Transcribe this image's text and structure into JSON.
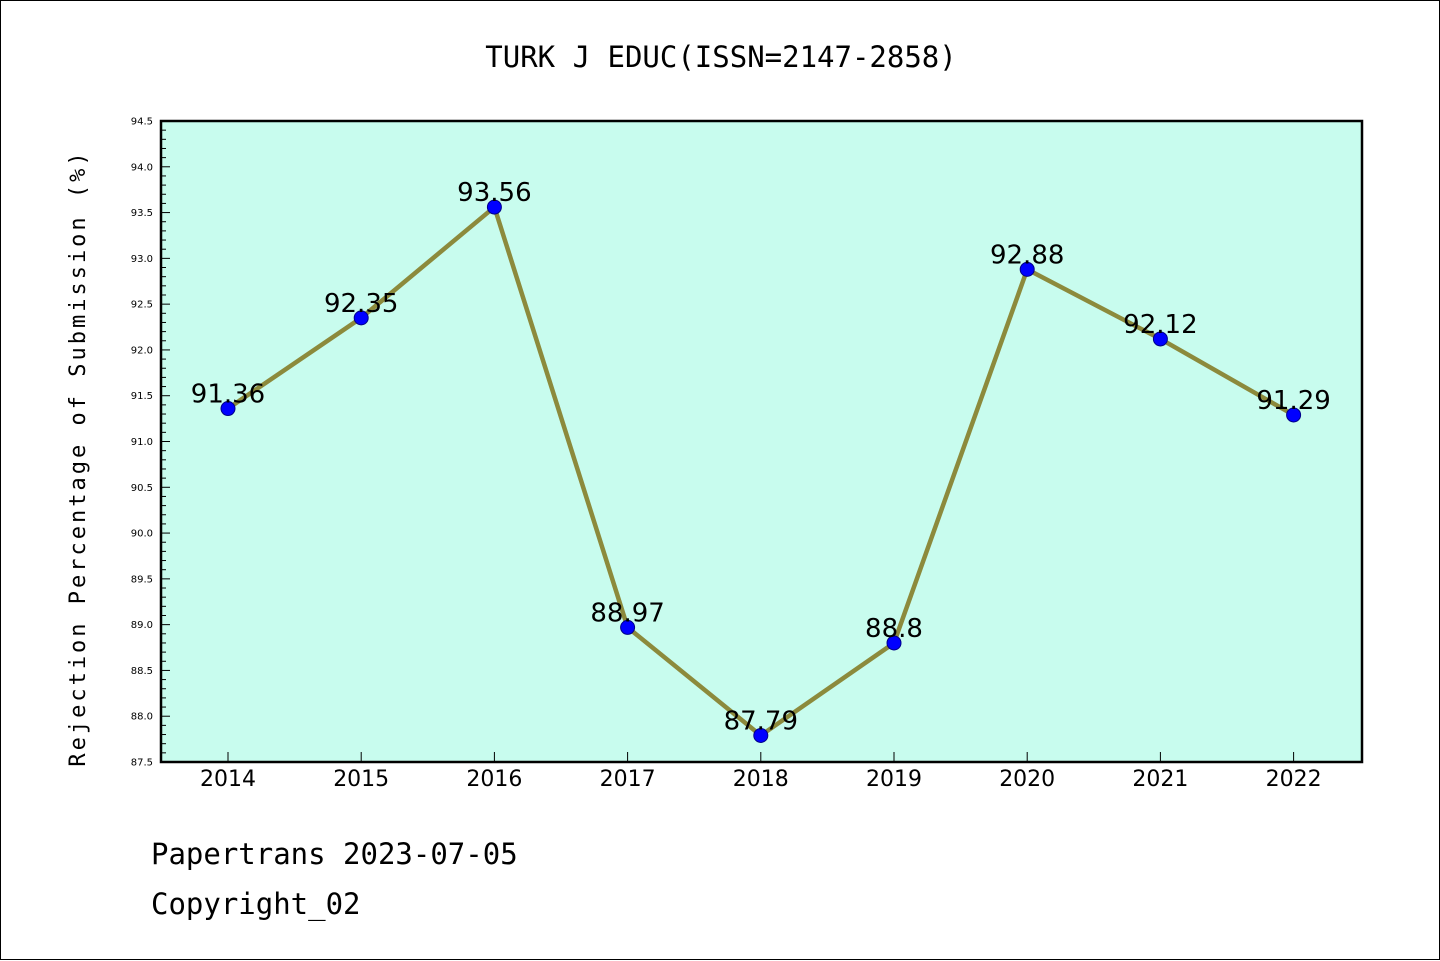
{
  "chart_data": {
    "type": "line",
    "title": "TURK J EDUC(ISSN=2147-2858)",
    "ylabel": "Rejection Percentage of Submission (%)",
    "xlabel": "",
    "categories": [
      "2014",
      "2015",
      "2016",
      "2017",
      "2018",
      "2019",
      "2020",
      "2021",
      "2022"
    ],
    "values": [
      91.36,
      92.35,
      93.56,
      88.97,
      87.79,
      88.8,
      92.88,
      92.12,
      91.29
    ],
    "data_labels": [
      "91.36",
      "92.35",
      "93.56",
      "88.97",
      "87.79",
      "88.8",
      "92.88",
      "92.12",
      "91.29"
    ],
    "ylim": [
      87.5,
      94.5
    ],
    "yticks": [
      "87.5",
      "88.0",
      "88.5",
      "89.0",
      "89.5",
      "90.0",
      "90.5",
      "91.0",
      "91.5",
      "92.0",
      "92.5",
      "93.0",
      "93.5",
      "94.0",
      "94.5"
    ],
    "grid": false,
    "colors": {
      "plot_background": "#c8fcee",
      "line": "#8c8a3c",
      "marker": "#0000ff"
    }
  },
  "footer": {
    "line1": "Papertrans 2023-07-05",
    "line2": "Copyright_02"
  }
}
